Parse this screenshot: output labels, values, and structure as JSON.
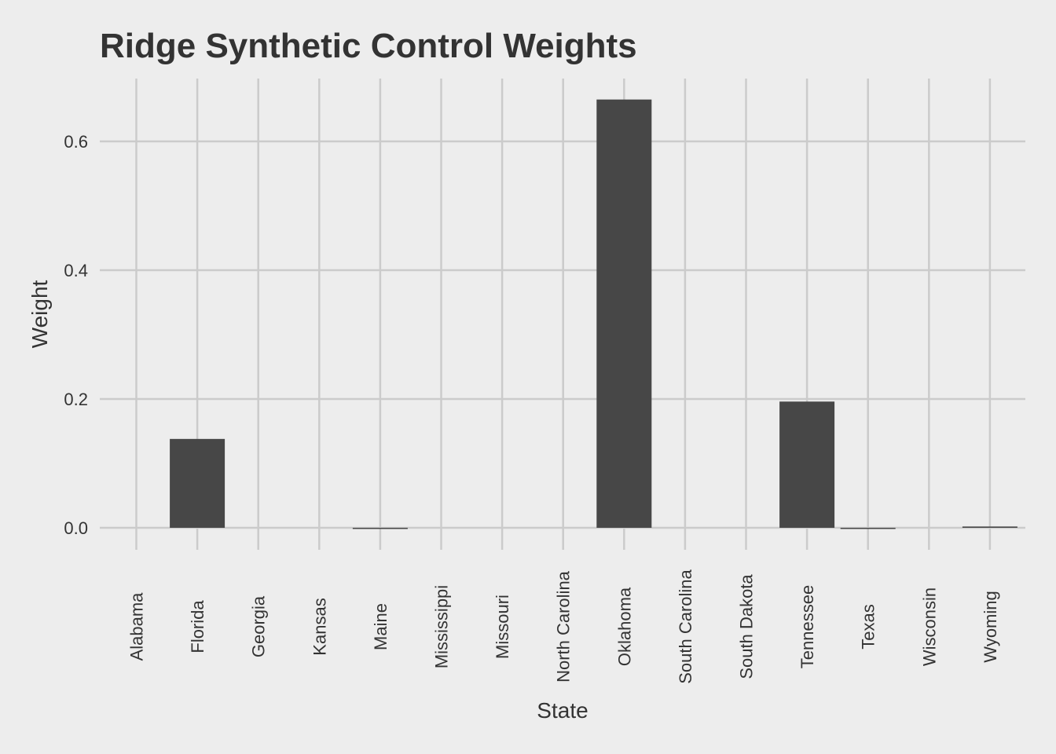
{
  "chart_data": {
    "type": "bar",
    "title": "Ridge Synthetic Control Weights",
    "xlabel": "State",
    "ylabel": "Weight",
    "categories": [
      "Alabama",
      "Florida",
      "Georgia",
      "Kansas",
      "Maine",
      "Mississippi",
      "Missouri",
      "North Carolina",
      "Oklahoma",
      "South Carolina",
      "South Dakota",
      "Tennessee",
      "Texas",
      "Wisconsin",
      "Wyoming"
    ],
    "values": [
      0.0,
      0.138,
      0.0,
      0.0,
      -0.001,
      0.0,
      0.0,
      0.0,
      0.665,
      0.0,
      0.0,
      0.196,
      -0.001,
      0.0,
      0.002
    ],
    "yticks": [
      "0.0",
      "0.2",
      "0.4",
      "0.6"
    ],
    "ylim": [
      -0.035,
      0.695
    ],
    "grid": true,
    "bar_color": "#474747",
    "background_color": "#ededed",
    "grid_color": "#cbcbcb"
  }
}
